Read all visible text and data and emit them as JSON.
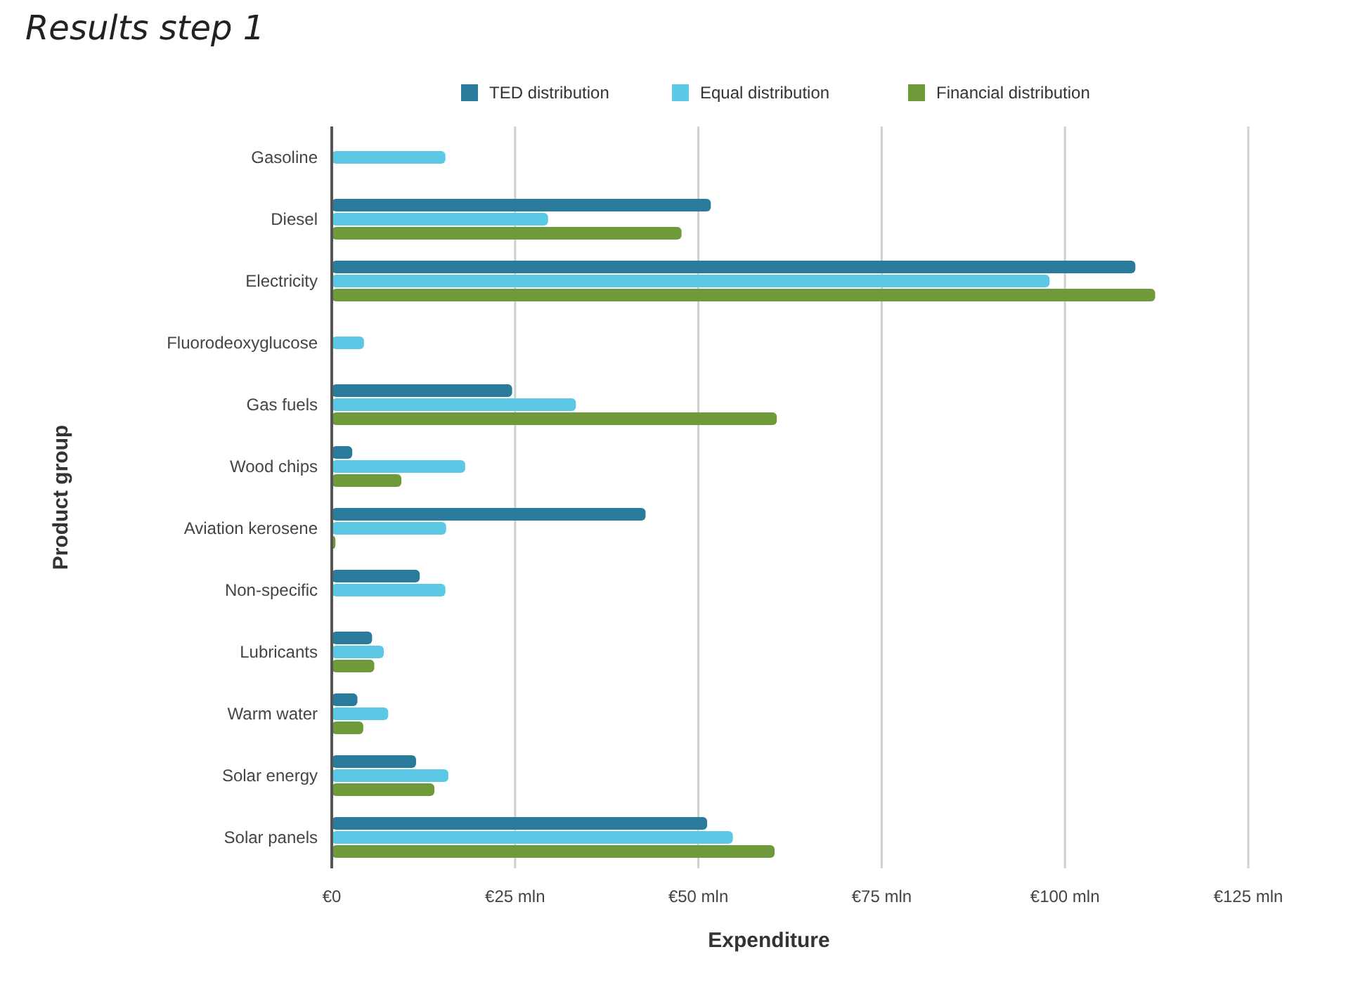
{
  "chart_data": {
    "type": "bar",
    "orientation": "horizontal",
    "title": "Results step 1",
    "xlabel": "Expenditure",
    "ylabel": "Product group",
    "categories": [
      "Gasoline",
      "Diesel",
      "Electricity",
      "Fluorodeoxyglucose",
      "Gas fuels",
      "Wood chips",
      "Aviation kerosene",
      "Non-specific",
      "Lubricants",
      "Warm water",
      "Solar energy",
      "Solar panels"
    ],
    "series": [
      {
        "name": "TED distribution",
        "color": "#2a7b9b",
        "values": [
          null,
          51.7,
          109.6,
          null,
          24.6,
          2.8,
          42.8,
          12.0,
          5.5,
          3.5,
          11.5,
          51.2
        ]
      },
      {
        "name": "Equal distribution",
        "color": "#5bc8e6",
        "values": [
          15.5,
          29.5,
          97.9,
          4.4,
          33.3,
          18.2,
          15.6,
          15.5,
          7.1,
          7.7,
          15.9,
          54.7
        ]
      },
      {
        "name": "Financial distribution",
        "color": "#6f9a3a",
        "values": [
          null,
          47.7,
          112.3,
          null,
          60.7,
          9.5,
          0.5,
          null,
          5.8,
          4.3,
          14.0,
          60.4
        ]
      }
    ],
    "xlim": [
      0,
      125
    ],
    "xticks": [
      {
        "value": 0,
        "label": "€0"
      },
      {
        "value": 25,
        "label": "€25 mln"
      },
      {
        "value": 50,
        "label": "€50 mln"
      },
      {
        "value": 75,
        "label": "€75 mln"
      },
      {
        "value": 100,
        "label": "€100 mln"
      },
      {
        "value": 125,
        "label": "€125 mln"
      }
    ],
    "grid": "x",
    "legend": "top"
  }
}
